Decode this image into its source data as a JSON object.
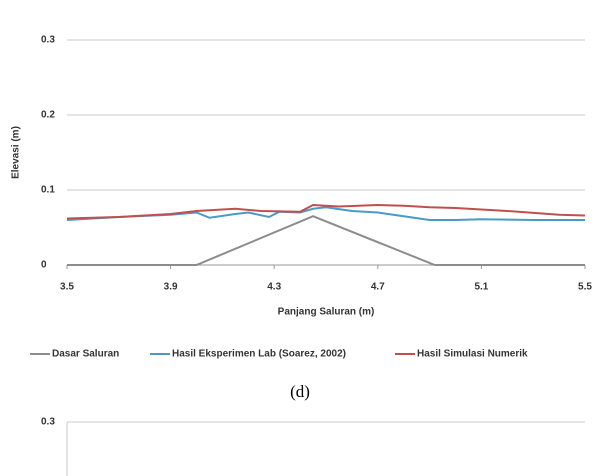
{
  "chart_data": [
    {
      "type": "line",
      "xlabel": "Panjang Saluran (m)",
      "ylabel": "Elevasi (m)",
      "xlim": [
        3.5,
        5.5
      ],
      "xticks": [
        3.5,
        3.9,
        4.3,
        4.7,
        5.1,
        5.5
      ],
      "ylim": [
        0,
        0.3
      ],
      "yticks": [
        0,
        0.1,
        0.2,
        0.3
      ],
      "grid": true,
      "legend": "bottom",
      "series": [
        {
          "name": "Dasar Saluran",
          "color": "#8c8c8c",
          "x": [
            3.5,
            4.0,
            4.45,
            4.92,
            5.5
          ],
          "values": [
            0,
            0,
            0.065,
            0,
            0
          ]
        },
        {
          "name": "Hasil Eksperimen Lab (Soarez, 2002)",
          "color": "#4a9ac8",
          "x": [
            3.5,
            3.7,
            3.9,
            4.0,
            4.05,
            4.15,
            4.2,
            4.28,
            4.32,
            4.4,
            4.45,
            4.5,
            4.6,
            4.7,
            4.8,
            4.9,
            5.0,
            5.1,
            5.3,
            5.5
          ],
          "values": [
            0.06,
            0.064,
            0.067,
            0.07,
            0.063,
            0.068,
            0.07,
            0.064,
            0.071,
            0.07,
            0.075,
            0.077,
            0.072,
            0.07,
            0.065,
            0.06,
            0.06,
            0.061,
            0.06,
            0.06
          ]
        },
        {
          "name": "Hasil Simulasi Numerik",
          "color": "#c0504d",
          "x": [
            3.5,
            3.7,
            3.9,
            4.0,
            4.15,
            4.25,
            4.4,
            4.45,
            4.55,
            4.7,
            4.8,
            4.9,
            5.0,
            5.2,
            5.4,
            5.5
          ],
          "values": [
            0.062,
            0.064,
            0.068,
            0.072,
            0.075,
            0.072,
            0.071,
            0.08,
            0.078,
            0.08,
            0.079,
            0.077,
            0.076,
            0.072,
            0.067,
            0.066
          ]
        }
      ]
    },
    {
      "type": "line",
      "ylim": [
        0,
        0.3
      ],
      "yticks": [
        0.3
      ],
      "grid": true
    }
  ],
  "caption": "(d)"
}
